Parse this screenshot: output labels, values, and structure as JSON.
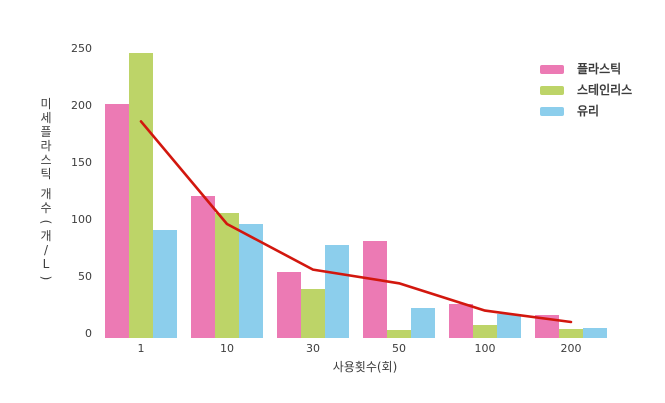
{
  "chart_data": {
    "type": "bar",
    "title": "",
    "xlabel": "사용횟수(회)",
    "ylabel": "미세플라스틱 개수(개/L)",
    "categories": [
      "1",
      "10",
      "30",
      "50",
      "100",
      "200"
    ],
    "series": [
      {
        "name": "플라스틱",
        "color": "#ec7ab4",
        "values": [
          205,
          125,
          58,
          85,
          30,
          20
        ]
      },
      {
        "name": "스테인리스",
        "color": "#bdd468",
        "values": [
          250,
          110,
          43,
          7,
          11,
          8
        ]
      },
      {
        "name": "유리",
        "color": "#8cceec",
        "values": [
          95,
          100,
          82,
          26,
          21,
          9
        ]
      }
    ],
    "trend_line": {
      "name": "추세선",
      "color": "#d2170e",
      "values": [
        190,
        100,
        60,
        48,
        24,
        14
      ]
    },
    "yticks": [
      0,
      50,
      100,
      150,
      200,
      250
    ],
    "ylim": [
      0,
      250
    ],
    "grid": false,
    "legend_position": "top-right",
    "background_color": "#ffffff",
    "text_color": "#3d3d3d"
  }
}
